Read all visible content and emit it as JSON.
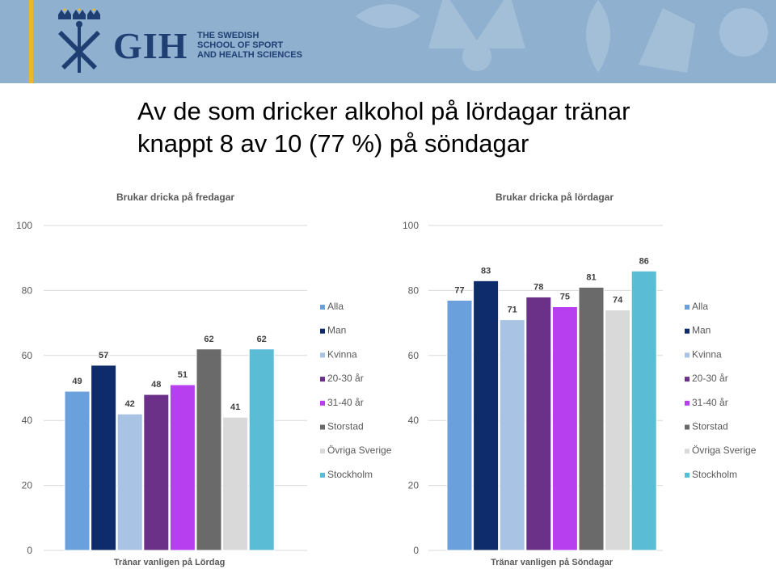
{
  "header": {
    "logo": "GIH",
    "school_line1": "THE SWEDISH",
    "school_line2": "SCHOOL OF SPORT",
    "school_line3": "AND HEALTH SCIENCES",
    "icons": [
      "crowns-crest-icon",
      "crown-watermark-icon"
    ],
    "colors": {
      "band": "#8fb0cf",
      "accent": "#e9b92c",
      "navy": "#1f3f73"
    }
  },
  "slide": {
    "title_line1": "Av de som dricker alkohol på lördagar tränar",
    "title_line2": "knappt 8 av 10 (77 %) på söndagar"
  },
  "chart_data": [
    {
      "type": "bar",
      "title": "Brukar dricka på fredagar",
      "xlabel": "Tränar vanligen på Lördag",
      "ylabel": "",
      "ylim": [
        0,
        100
      ],
      "yticks": [
        0,
        20,
        40,
        60,
        80,
        100
      ],
      "grid": true,
      "legend": "right",
      "categories": [
        "Alla",
        "Man",
        "Kvinna",
        "20-30 år",
        "31-40 år",
        "Storstad",
        "Övriga Sverige",
        "Stockholm"
      ],
      "values": [
        49,
        57,
        42,
        48,
        51,
        62,
        41,
        62
      ],
      "colors": [
        "#6aa0dc",
        "#0e2c6b",
        "#a8c3e3",
        "#6b3189",
        "#b83ff0",
        "#6a6a6a",
        "#d9d9d9",
        "#5bbcd6"
      ]
    },
    {
      "type": "bar",
      "title": "Brukar dricka på lördagar",
      "xlabel": "Tränar vanligen på Söndagar",
      "ylabel": "",
      "ylim": [
        0,
        100
      ],
      "yticks": [
        0,
        20,
        40,
        60,
        80,
        100
      ],
      "grid": true,
      "legend": "right",
      "categories": [
        "Alla",
        "Man",
        "Kvinna",
        "20-30 år",
        "31-40 år",
        "Storstad",
        "Övriga Sverige",
        "Stockholm"
      ],
      "values": [
        77,
        83,
        71,
        78,
        75,
        81,
        74,
        86
      ],
      "colors": [
        "#6aa0dc",
        "#0e2c6b",
        "#a8c3e3",
        "#6b3189",
        "#b83ff0",
        "#6a6a6a",
        "#d9d9d9",
        "#5bbcd6"
      ]
    }
  ]
}
